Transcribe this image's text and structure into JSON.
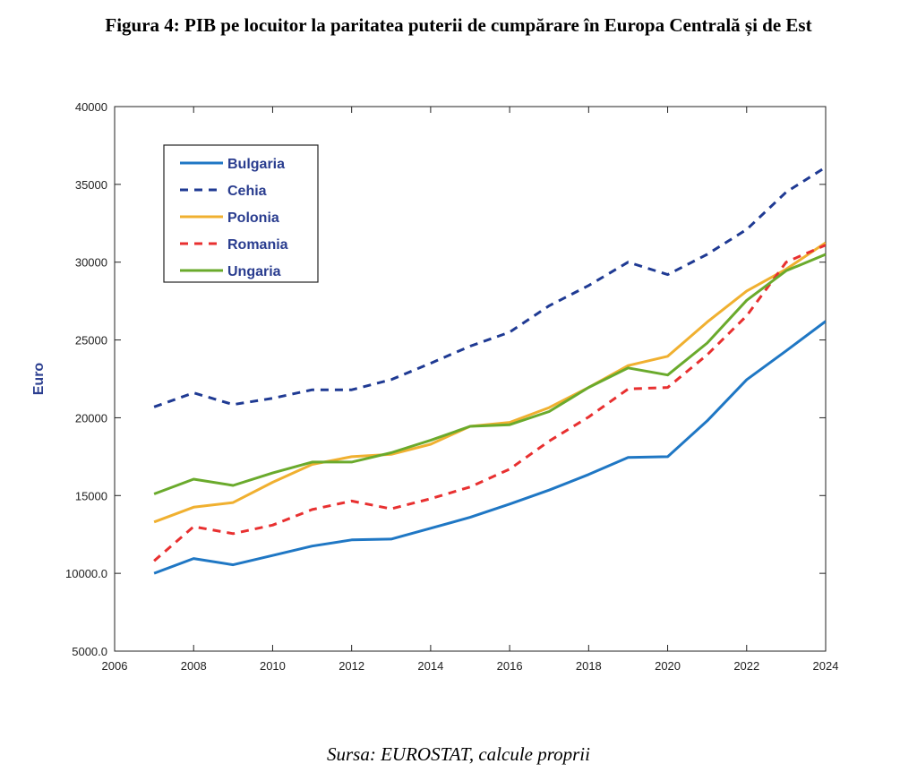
{
  "figure": {
    "title": "Figura 4: PIB pe locuitor la paritatea puterii de cumpărare în Europa Centrală și de Est",
    "source": "Sursa: EUROSTAT, calcule proprii"
  },
  "chart_data": {
    "type": "line",
    "title": "",
    "xlabel": "",
    "ylabel": "Euro",
    "xlim": [
      2006,
      2024
    ],
    "ylim": [
      5000,
      40000
    ],
    "x_ticks": [
      2006,
      2008,
      2010,
      2012,
      2014,
      2016,
      2018,
      2020,
      2022,
      2024
    ],
    "x_tick_labels": [
      "2006",
      "2008",
      "2010",
      "2012",
      "2014",
      "2016",
      "2018",
      "2020",
      "2022",
      "2024"
    ],
    "y_ticks": [
      5000,
      10000,
      15000,
      20000,
      25000,
      30000,
      35000,
      40000
    ],
    "y_tick_labels": [
      "5000.0",
      "10000.0",
      "15000",
      "20000",
      "25000",
      "30000",
      "35000",
      "40000"
    ],
    "grid": false,
    "legend_position": "top-left",
    "x": [
      2007,
      2008,
      2009,
      2010,
      2011,
      2012,
      2013,
      2014,
      2015,
      2016,
      2017,
      2018,
      2019,
      2020,
      2021,
      2022,
      2023,
      2024
    ],
    "series": [
      {
        "name": "Bulgaria",
        "color": "#1f77c4",
        "style": "solid",
        "values": [
          10000,
          10950,
          10550,
          11150,
          11750,
          12150,
          12200,
          12900,
          13600,
          14450,
          15350,
          16350,
          17450,
          17500,
          19800,
          22450,
          24300,
          26200
        ]
      },
      {
        "name": "Cehia",
        "color": "#1f3a93",
        "style": "dashed",
        "values": [
          20700,
          21600,
          20850,
          21250,
          21800,
          21800,
          22450,
          23500,
          24600,
          25500,
          27200,
          28500,
          30000,
          29200,
          30500,
          32100,
          34500,
          36100
        ]
      },
      {
        "name": "Polonia",
        "color": "#f0b030",
        "style": "solid",
        "values": [
          13300,
          14250,
          14550,
          15850,
          17000,
          17500,
          17650,
          18300,
          19450,
          19700,
          20650,
          21950,
          23350,
          23950,
          26150,
          28150,
          29550,
          31250
        ]
      },
      {
        "name": "Romania",
        "color": "#e83030",
        "style": "dashed",
        "values": [
          10800,
          13000,
          12550,
          13100,
          14100,
          14650,
          14150,
          14800,
          15550,
          16700,
          18500,
          20050,
          21850,
          21950,
          24050,
          26550,
          30000,
          31100
        ]
      },
      {
        "name": "Ungaria",
        "color": "#6aaa2c",
        "style": "solid",
        "values": [
          15100,
          16050,
          15650,
          16450,
          17150,
          17150,
          17750,
          18550,
          19450,
          19550,
          20400,
          21950,
          23200,
          22750,
          24800,
          27550,
          29450,
          30500
        ]
      }
    ]
  }
}
